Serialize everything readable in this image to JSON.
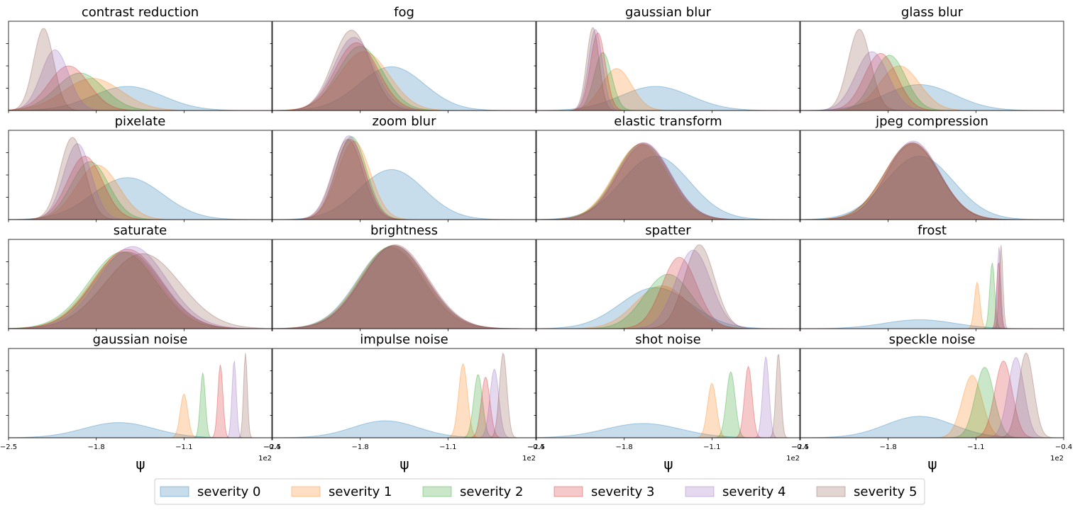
{
  "figure": {
    "legend": {
      "entries": [
        {
          "label": "severity 0",
          "color": "#1f77b4"
        },
        {
          "label": "severity 1",
          "color": "#ff7f0e"
        },
        {
          "label": "severity 2",
          "color": "#2ca02c"
        },
        {
          "label": "severity 3",
          "color": "#d62728"
        },
        {
          "label": "severity 4",
          "color": "#9467bd"
        },
        {
          "label": "severity 5",
          "color": "#8c564b"
        }
      ]
    }
  },
  "chart_data": {
    "type": "area",
    "description_kind": "kernel density estimates (filled, alpha ~0.25)",
    "rows": 4,
    "cols": 4,
    "xlim": [
      -2.5,
      -0.4
    ],
    "xticks": [
      -2.5,
      -1.8,
      -1.1,
      -0.4
    ],
    "xtick_labels": [
      "−2.5",
      "−1.8",
      "−1.1",
      "−0.4"
    ],
    "x_offset_label": "1e2",
    "xlabel": "ψ",
    "series_names": [
      "severity 0",
      "severity 1",
      "severity 2",
      "severity 3",
      "severity 4",
      "severity 5"
    ],
    "colors": [
      "#1f77b4",
      "#ff7f0e",
      "#2ca02c",
      "#d62728",
      "#9467bd",
      "#8c564b"
    ],
    "panels": [
      {
        "title": "contrast reduction",
        "series": [
          {
            "name": "severity 0",
            "mu": -1.55,
            "sigma": 0.28,
            "peak": 0.27
          },
          {
            "name": "severity 1",
            "mu": -1.83,
            "sigma": 0.23,
            "peak": 0.36
          },
          {
            "name": "severity 2",
            "mu": -1.93,
            "sigma": 0.19,
            "peak": 0.42
          },
          {
            "name": "severity 3",
            "mu": -2.02,
            "sigma": 0.16,
            "peak": 0.5
          },
          {
            "name": "severity 4",
            "mu": -2.13,
            "sigma": 0.11,
            "peak": 0.68
          },
          {
            "name": "severity 5",
            "mu": -2.22,
            "sigma": 0.08,
            "peak": 0.92
          }
        ]
      },
      {
        "title": "fog",
        "series": [
          {
            "name": "severity 0",
            "mu": -1.55,
            "sigma": 0.26,
            "peak": 0.49
          },
          {
            "name": "severity 1",
            "mu": -1.77,
            "sigma": 0.2,
            "peak": 0.66
          },
          {
            "name": "severity 2",
            "mu": -1.8,
            "sigma": 0.18,
            "peak": 0.72
          },
          {
            "name": "severity 3",
            "mu": -1.83,
            "sigma": 0.17,
            "peak": 0.76
          },
          {
            "name": "severity 4",
            "mu": -1.85,
            "sigma": 0.16,
            "peak": 0.82
          },
          {
            "name": "severity 5",
            "mu": -1.87,
            "sigma": 0.15,
            "peak": 0.9
          }
        ]
      },
      {
        "title": "gaussian blur",
        "series": [
          {
            "name": "severity 0",
            "mu": -1.55,
            "sigma": 0.28,
            "peak": 0.27
          },
          {
            "name": "severity 1",
            "mu": -1.86,
            "sigma": 0.12,
            "peak": 0.47
          },
          {
            "name": "severity 2",
            "mu": -1.97,
            "sigma": 0.07,
            "peak": 0.65
          },
          {
            "name": "severity 3",
            "mu": -2.01,
            "sigma": 0.06,
            "peak": 0.87
          },
          {
            "name": "severity 4",
            "mu": -2.03,
            "sigma": 0.055,
            "peak": 0.91
          },
          {
            "name": "severity 5",
            "mu": -2.05,
            "sigma": 0.05,
            "peak": 0.93
          }
        ]
      },
      {
        "title": "glass blur",
        "series": [
          {
            "name": "severity 0",
            "mu": -1.55,
            "sigma": 0.28,
            "peak": 0.29
          },
          {
            "name": "severity 1",
            "mu": -1.71,
            "sigma": 0.16,
            "peak": 0.5
          },
          {
            "name": "severity 2",
            "mu": -1.79,
            "sigma": 0.13,
            "peak": 0.62
          },
          {
            "name": "severity 3",
            "mu": -1.86,
            "sigma": 0.13,
            "peak": 0.64
          },
          {
            "name": "severity 4",
            "mu": -1.93,
            "sigma": 0.13,
            "peak": 0.66
          },
          {
            "name": "severity 5",
            "mu": -2.03,
            "sigma": 0.09,
            "peak": 0.91
          }
        ]
      },
      {
        "title": "pixelate",
        "series": [
          {
            "name": "severity 0",
            "mu": -1.55,
            "sigma": 0.28,
            "peak": 0.47
          },
          {
            "name": "severity 1",
            "mu": -1.79,
            "sigma": 0.17,
            "peak": 0.61
          },
          {
            "name": "severity 2",
            "mu": -1.85,
            "sigma": 0.15,
            "peak": 0.65
          },
          {
            "name": "severity 3",
            "mu": -1.89,
            "sigma": 0.14,
            "peak": 0.71
          },
          {
            "name": "severity 4",
            "mu": -1.95,
            "sigma": 0.11,
            "peak": 0.85
          },
          {
            "name": "severity 5",
            "mu": -1.99,
            "sigma": 0.1,
            "peak": 0.92
          }
        ]
      },
      {
        "title": "zoom blur",
        "series": [
          {
            "name": "severity 0",
            "mu": -1.55,
            "sigma": 0.26,
            "peak": 0.56
          },
          {
            "name": "severity 1",
            "mu": -1.85,
            "sigma": 0.13,
            "peak": 0.88
          },
          {
            "name": "severity 2",
            "mu": -1.87,
            "sigma": 0.12,
            "peak": 0.93
          },
          {
            "name": "severity 3",
            "mu": -1.88,
            "sigma": 0.12,
            "peak": 0.9
          },
          {
            "name": "severity 4",
            "mu": -1.89,
            "sigma": 0.12,
            "peak": 0.94
          },
          {
            "name": "severity 5",
            "mu": -1.9,
            "sigma": 0.12,
            "peak": 0.9
          }
        ]
      },
      {
        "title": "elastic transform",
        "series": [
          {
            "name": "severity 0",
            "mu": -1.55,
            "sigma": 0.27,
            "peak": 0.71
          },
          {
            "name": "severity 1",
            "mu": -1.67,
            "sigma": 0.21,
            "peak": 0.84
          },
          {
            "name": "severity 2",
            "mu": -1.66,
            "sigma": 0.21,
            "peak": 0.85
          },
          {
            "name": "severity 3",
            "mu": -1.65,
            "sigma": 0.21,
            "peak": 0.86
          },
          {
            "name": "severity 4",
            "mu": -1.64,
            "sigma": 0.21,
            "peak": 0.86
          },
          {
            "name": "severity 5",
            "mu": -1.64,
            "sigma": 0.21,
            "peak": 0.84
          }
        ]
      },
      {
        "title": "jpeg compression",
        "series": [
          {
            "name": "severity 0",
            "mu": -1.55,
            "sigma": 0.27,
            "peak": 0.71
          },
          {
            "name": "severity 1",
            "mu": -1.61,
            "sigma": 0.22,
            "peak": 0.84
          },
          {
            "name": "severity 2",
            "mu": -1.61,
            "sigma": 0.22,
            "peak": 0.85
          },
          {
            "name": "severity 3",
            "mu": -1.61,
            "sigma": 0.22,
            "peak": 0.86
          },
          {
            "name": "severity 4",
            "mu": -1.6,
            "sigma": 0.21,
            "peak": 0.88
          },
          {
            "name": "severity 5",
            "mu": -1.6,
            "sigma": 0.21,
            "peak": 0.86
          }
        ]
      },
      {
        "title": "saturate",
        "series": [
          {
            "name": "severity 0",
            "mu": -1.55,
            "sigma": 0.27,
            "peak": 0.86
          },
          {
            "name": "severity 1",
            "mu": -1.57,
            "sigma": 0.27,
            "peak": 0.86
          },
          {
            "name": "severity 2",
            "mu": -1.59,
            "sigma": 0.27,
            "peak": 0.86
          },
          {
            "name": "severity 3",
            "mu": -1.55,
            "sigma": 0.27,
            "peak": 0.89
          },
          {
            "name": "severity 4",
            "mu": -1.51,
            "sigma": 0.27,
            "peak": 0.92
          },
          {
            "name": "severity 5",
            "mu": -1.43,
            "sigma": 0.3,
            "peak": 0.84
          }
        ]
      },
      {
        "title": "brightness",
        "series": [
          {
            "name": "severity 0",
            "mu": -1.56,
            "sigma": 0.26,
            "peak": 0.91
          },
          {
            "name": "severity 1",
            "mu": -1.55,
            "sigma": 0.26,
            "peak": 0.92
          },
          {
            "name": "severity 2",
            "mu": -1.54,
            "sigma": 0.26,
            "peak": 0.93
          },
          {
            "name": "severity 3",
            "mu": -1.53,
            "sigma": 0.26,
            "peak": 0.93
          },
          {
            "name": "severity 4",
            "mu": -1.53,
            "sigma": 0.26,
            "peak": 0.93
          },
          {
            "name": "severity 5",
            "mu": -1.52,
            "sigma": 0.26,
            "peak": 0.94
          }
        ]
      },
      {
        "title": "spatter",
        "series": [
          {
            "name": "severity 0",
            "mu": -1.55,
            "sigma": 0.28,
            "peak": 0.46
          },
          {
            "name": "severity 1",
            "mu": -1.5,
            "sigma": 0.21,
            "peak": 0.48
          },
          {
            "name": "severity 2",
            "mu": -1.45,
            "sigma": 0.19,
            "peak": 0.61
          },
          {
            "name": "severity 3",
            "mu": -1.36,
            "sigma": 0.14,
            "peak": 0.8
          },
          {
            "name": "severity 4",
            "mu": -1.25,
            "sigma": 0.14,
            "peak": 0.88
          },
          {
            "name": "severity 5",
            "mu": -1.2,
            "sigma": 0.12,
            "peak": 0.94
          }
        ]
      },
      {
        "title": "frost",
        "series": [
          {
            "name": "severity 0",
            "mu": -1.55,
            "sigma": 0.28,
            "peak": 0.1
          },
          {
            "name": "severity 1",
            "mu": -1.09,
            "sigma": 0.022,
            "peak": 0.52
          },
          {
            "name": "severity 2",
            "mu": -0.97,
            "sigma": 0.02,
            "peak": 0.74
          },
          {
            "name": "severity 3",
            "mu": -0.92,
            "sigma": 0.015,
            "peak": 0.76
          },
          {
            "name": "severity 4",
            "mu": -0.915,
            "sigma": 0.015,
            "peak": 0.92
          },
          {
            "name": "severity 5",
            "mu": -0.9,
            "sigma": 0.015,
            "peak": 0.94
          }
        ]
      },
      {
        "title": "gaussian noise",
        "series": [
          {
            "name": "severity 0",
            "mu": -1.62,
            "sigma": 0.28,
            "peak": 0.17
          },
          {
            "name": "severity 1",
            "mu": -1.1,
            "sigma": 0.03,
            "peak": 0.49
          },
          {
            "name": "severity 2",
            "mu": -0.95,
            "sigma": 0.02,
            "peak": 0.73
          },
          {
            "name": "severity 3",
            "mu": -0.81,
            "sigma": 0.02,
            "peak": 0.82
          },
          {
            "name": "severity 4",
            "mu": -0.7,
            "sigma": 0.017,
            "peak": 0.87
          },
          {
            "name": "severity 5",
            "mu": -0.61,
            "sigma": 0.015,
            "peak": 0.95
          }
        ]
      },
      {
        "title": "impulse noise",
        "series": [
          {
            "name": "severity 0",
            "mu": -1.6,
            "sigma": 0.26,
            "peak": 0.19
          },
          {
            "name": "severity 1",
            "mu": -0.98,
            "sigma": 0.035,
            "peak": 0.83
          },
          {
            "name": "severity 2",
            "mu": -0.86,
            "sigma": 0.035,
            "peak": 0.71
          },
          {
            "name": "severity 3",
            "mu": -0.8,
            "sigma": 0.035,
            "peak": 0.68
          },
          {
            "name": "severity 4",
            "mu": -0.73,
            "sigma": 0.035,
            "peak": 0.77
          },
          {
            "name": "severity 5",
            "mu": -0.66,
            "sigma": 0.03,
            "peak": 0.95
          }
        ]
      },
      {
        "title": "shot noise",
        "series": [
          {
            "name": "severity 0",
            "mu": -1.65,
            "sigma": 0.3,
            "peak": 0.16
          },
          {
            "name": "severity 1",
            "mu": -1.1,
            "sigma": 0.035,
            "peak": 0.61
          },
          {
            "name": "severity 2",
            "mu": -0.95,
            "sigma": 0.035,
            "peak": 0.74
          },
          {
            "name": "severity 3",
            "mu": -0.81,
            "sigma": 0.03,
            "peak": 0.8
          },
          {
            "name": "severity 4",
            "mu": -0.67,
            "sigma": 0.025,
            "peak": 0.91
          },
          {
            "name": "severity 5",
            "mu": -0.57,
            "sigma": 0.02,
            "peak": 0.95
          }
        ]
      },
      {
        "title": "speckle noise",
        "series": [
          {
            "name": "severity 0",
            "mu": -1.55,
            "sigma": 0.27,
            "peak": 0.24
          },
          {
            "name": "severity 1",
            "mu": -1.13,
            "sigma": 0.08,
            "peak": 0.7
          },
          {
            "name": "severity 2",
            "mu": -1.03,
            "sigma": 0.075,
            "peak": 0.79
          },
          {
            "name": "severity 3",
            "mu": -0.88,
            "sigma": 0.07,
            "peak": 0.86
          },
          {
            "name": "severity 4",
            "mu": -0.78,
            "sigma": 0.065,
            "peak": 0.9
          },
          {
            "name": "severity 5",
            "mu": -0.7,
            "sigma": 0.06,
            "peak": 0.95
          }
        ]
      }
    ]
  }
}
